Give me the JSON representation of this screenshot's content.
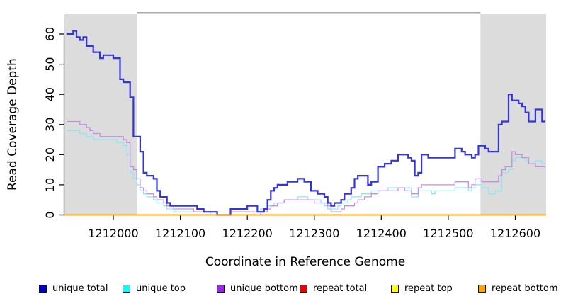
{
  "chart_data": {
    "type": "line",
    "style": "step",
    "xlabel": "Coordinate in Reference Genome",
    "ylabel": "Read Coverage Depth",
    "xlim": [
      1211927,
      1212646
    ],
    "ylim": [
      0,
      60
    ],
    "x_ticks": [
      1212000,
      1212100,
      1212200,
      1212300,
      1212400,
      1212500,
      1212600
    ],
    "y_ticks": [
      0,
      10,
      20,
      30,
      40,
      50,
      60
    ],
    "grid": false,
    "legend_position": "bottom",
    "background": "#FFFFFF",
    "shaded_regions": [
      {
        "from": 1211927,
        "to": 1212035,
        "color": "#DCDCDC"
      },
      {
        "from": 1212548,
        "to": 1212646,
        "color": "#DCDCDC"
      }
    ],
    "top_rule": {
      "from": 1212035,
      "to": 1212548,
      "color": "#8F8F8F"
    },
    "x_start": 1211930,
    "x_step": 5,
    "series": [
      {
        "name": "unique top",
        "legend_color": "#00FFFF",
        "line_color": "#8BE9EF",
        "width": 1.3,
        "values": [
          28,
          28,
          28,
          28,
          27,
          27,
          26,
          26,
          25,
          25,
          25,
          25,
          25,
          25,
          25,
          24,
          24,
          23,
          20,
          14,
          12,
          10,
          8,
          7,
          6,
          6,
          5,
          4,
          4,
          3,
          2,
          2,
          1,
          1,
          1,
          1,
          1,
          1,
          1,
          1,
          1,
          1,
          1,
          0,
          0,
          0,
          0,
          0,
          0,
          1,
          1,
          1,
          1,
          1,
          1,
          1,
          1,
          1,
          2,
          2,
          3,
          3,
          4,
          4,
          4,
          5,
          5,
          5,
          5,
          6,
          6,
          6,
          5,
          5,
          5,
          5,
          4,
          3,
          2,
          2,
          2,
          3,
          4,
          4,
          5,
          6,
          6,
          6,
          7,
          7,
          7,
          8,
          8,
          8,
          8,
          8,
          9,
          9,
          9,
          9,
          9,
          9,
          9,
          6,
          6,
          8,
          8,
          8,
          8,
          7,
          8,
          8,
          8,
          8,
          8,
          8,
          9,
          9,
          9,
          9,
          8,
          9,
          10,
          10,
          9,
          9,
          7,
          7,
          8,
          8,
          14,
          14,
          15,
          18,
          19,
          19,
          19,
          18,
          17,
          17,
          18,
          18,
          17
        ]
      },
      {
        "name": "unique bottom",
        "legend_color": "#A020F0",
        "line_color": "#C38FE3",
        "width": 1.3,
        "values": [
          31,
          31,
          31,
          31,
          30,
          30,
          29,
          28,
          27,
          27,
          26,
          26,
          26,
          26,
          26,
          26,
          26,
          25,
          24,
          16,
          15,
          12,
          9,
          8,
          7,
          7,
          6,
          5,
          5,
          4,
          3,
          3,
          2,
          2,
          2,
          2,
          2,
          2,
          1,
          1,
          1,
          1,
          1,
          1,
          1,
          0,
          0,
          0,
          0,
          1,
          1,
          1,
          1,
          1,
          1,
          1,
          0,
          0,
          1,
          1,
          2,
          3,
          3,
          4,
          4,
          5,
          5,
          5,
          5,
          5,
          5,
          5,
          5,
          5,
          4,
          4,
          4,
          4,
          3,
          1,
          1,
          1,
          2,
          3,
          3,
          3,
          4,
          5,
          5,
          6,
          6,
          7,
          7,
          8,
          8,
          8,
          8,
          8,
          8,
          9,
          9,
          8,
          8,
          7,
          7,
          9,
          10,
          10,
          10,
          10,
          10,
          10,
          10,
          10,
          10,
          10,
          11,
          11,
          11,
          11,
          9,
          10,
          12,
          12,
          11,
          11,
          11,
          11,
          11,
          13,
          15,
          16,
          16,
          21,
          20,
          20,
          19,
          19,
          17,
          17,
          16,
          16,
          16
        ]
      },
      {
        "name": "unique total",
        "legend_color": "#0000CD",
        "line_color": "#3434DC",
        "width": 2.2,
        "values": [
          60,
          60,
          61,
          59,
          58,
          59,
          56,
          56,
          54,
          54,
          52,
          53,
          53,
          53,
          52,
          52,
          45,
          44,
          44,
          39,
          26,
          26,
          21,
          14,
          13,
          13,
          12,
          8,
          6,
          6,
          4,
          3,
          3,
          3,
          3,
          3,
          3,
          3,
          3,
          2,
          2,
          1,
          1,
          1,
          1,
          0,
          0,
          0,
          0,
          2,
          2,
          2,
          2,
          2,
          3,
          3,
          3,
          1,
          1,
          2,
          5,
          8,
          9,
          10,
          10,
          10,
          11,
          11,
          11,
          12,
          12,
          11,
          11,
          8,
          8,
          7,
          7,
          6,
          4,
          3,
          4,
          4,
          5,
          7,
          7,
          9,
          12,
          13,
          13,
          13,
          10,
          11,
          11,
          16,
          16,
          17,
          17,
          18,
          18,
          20,
          20,
          20,
          19,
          18,
          13,
          14,
          20,
          20,
          19,
          19,
          19,
          19,
          19,
          19,
          19,
          19,
          22,
          22,
          21,
          20,
          20,
          19,
          20,
          23,
          23,
          22,
          21,
          21,
          21,
          30,
          31,
          31,
          40,
          38,
          38,
          37,
          36,
          34,
          31,
          31,
          35,
          35,
          31
        ]
      },
      {
        "name": "repeat total",
        "legend_color": "#EE0000",
        "line_color": "#EE0000",
        "width": 1.4,
        "constant": 0
      },
      {
        "name": "repeat top",
        "legend_color": "#FFFF00",
        "line_color": "#FFFF00",
        "width": 1.4,
        "constant": 0
      },
      {
        "name": "repeat bottom",
        "legend_color": "#FFA500",
        "line_color": "#FFA500",
        "width": 1.8,
        "constant": 0
      }
    ]
  },
  "legend": [
    {
      "label": "unique total",
      "color": "#0000CD"
    },
    {
      "label": "unique top",
      "color": "#00FFFF"
    },
    {
      "label": "unique bottom",
      "color": "#A020F0"
    },
    {
      "label": "repeat total",
      "color": "#EE0000"
    },
    {
      "label": "repeat top",
      "color": "#FFFF00"
    },
    {
      "label": "repeat bottom",
      "color": "#FFA500"
    }
  ]
}
